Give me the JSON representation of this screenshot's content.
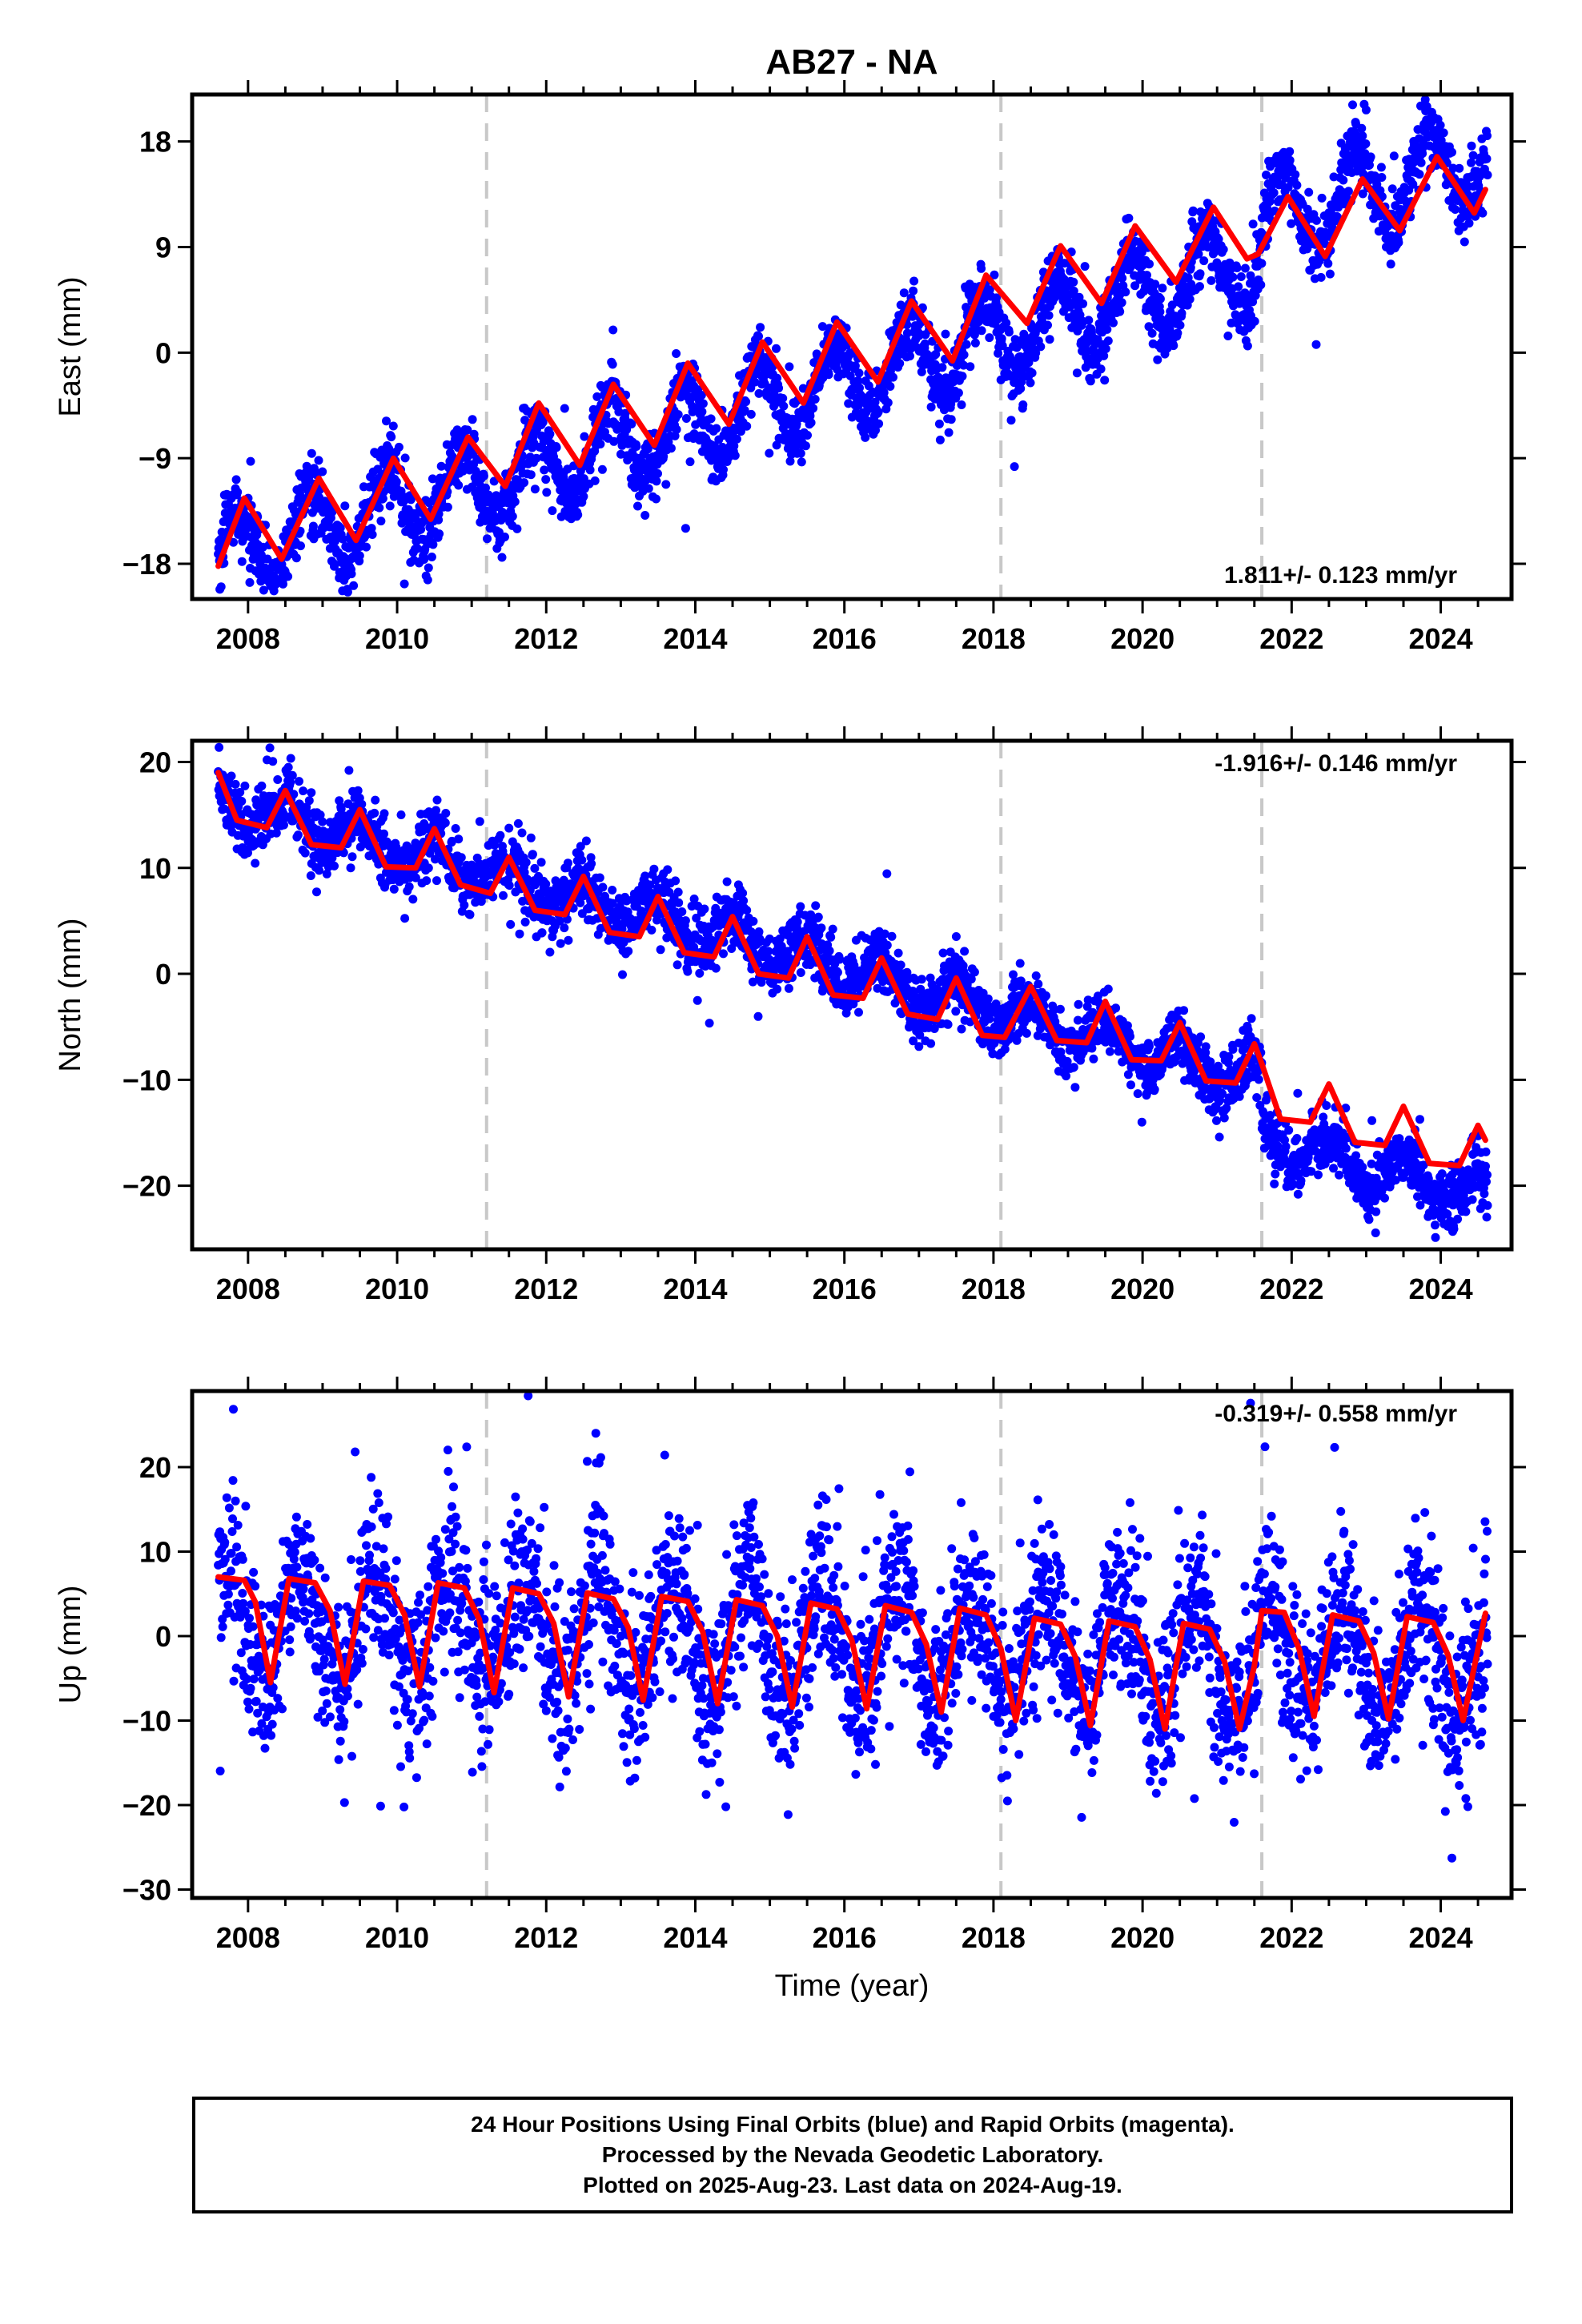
{
  "title": "AB27 - NA",
  "colors": {
    "data": "#0000ff",
    "model": "#ff0000",
    "offset_line": "#c8c8c8",
    "axis": "#000000"
  },
  "footer": {
    "line1": "24 Hour Positions Using Final Orbits (blue) and Rapid Orbits (magenta).",
    "line2": "Processed by the Nevada Geodetic Laboratory.",
    "line3": "Plotted on 2025-Aug-23. Last data on 2024-Aug-19."
  },
  "chart_data": [
    {
      "type": "scatter",
      "panel": "east",
      "ylabel": "East (mm)",
      "xlabel": "",
      "xlim": [
        2007.25,
        2024.95
      ],
      "ylim": [
        -21,
        22
      ],
      "yticks": [
        -18,
        -9,
        0,
        9,
        18
      ],
      "xticks": [
        2008,
        2010,
        2012,
        2014,
        2016,
        2018,
        2020,
        2022,
        2024
      ],
      "offsets": [
        2011.2,
        2018.1,
        2021.6
      ],
      "rate_label": "1.811+/- 0.123 mm/yr",
      "rate_position": "bottom-right",
      "series": [
        {
          "role": "observations",
          "trend": {
            "t0": 2007.6,
            "start": -17.5,
            "rate": 1.811
          },
          "steps": [
            {
              "t": 2021.6,
              "dy": 3.5
            }
          ],
          "seasonal_amplitude": 3.5,
          "seasonal_peak": 0.85,
          "noise_sd": 1.5
        },
        {
          "role": "model",
          "points": [
            [
              2007.6,
              -18.2
            ],
            [
              2007.95,
              -12.4
            ],
            [
              2008.45,
              -17.6
            ],
            [
              2008.95,
              -10.7
            ],
            [
              2009.45,
              -16.0
            ],
            [
              2009.95,
              -9.0
            ],
            [
              2010.45,
              -14.2
            ],
            [
              2010.95,
              -7.2
            ],
            [
              2011.45,
              -11.4
            ],
            [
              2011.9,
              -4.3
            ],
            [
              2012.45,
              -9.6
            ],
            [
              2012.9,
              -2.7
            ],
            [
              2013.45,
              -7.9
            ],
            [
              2013.9,
              -0.9
            ],
            [
              2014.45,
              -6.1
            ],
            [
              2014.9,
              0.9
            ],
            [
              2015.45,
              -4.3
            ],
            [
              2015.9,
              2.6
            ],
            [
              2016.45,
              -2.5
            ],
            [
              2016.9,
              4.4
            ],
            [
              2017.45,
              -0.7
            ],
            [
              2017.9,
              6.6
            ],
            [
              2018.45,
              2.5
            ],
            [
              2018.9,
              9.1
            ],
            [
              2019.45,
              4.2
            ],
            [
              2019.9,
              10.8
            ],
            [
              2020.45,
              6.0
            ],
            [
              2020.95,
              12.4
            ],
            [
              2021.4,
              8.0
            ],
            [
              2021.55,
              8.4
            ],
            [
              2021.95,
              13.3
            ],
            [
              2022.45,
              8.2
            ],
            [
              2022.95,
              14.8
            ],
            [
              2023.45,
              10.4
            ],
            [
              2023.95,
              16.7
            ],
            [
              2024.45,
              11.9
            ],
            [
              2024.6,
              13.9
            ]
          ]
        }
      ]
    },
    {
      "type": "scatter",
      "panel": "north",
      "ylabel": "North (mm)",
      "xlabel": "",
      "xlim": [
        2007.25,
        2024.95
      ],
      "ylim": [
        -26,
        22
      ],
      "yticks": [
        -20,
        -10,
        0,
        10,
        20
      ],
      "xticks": [
        2008,
        2010,
        2012,
        2014,
        2016,
        2018,
        2020,
        2022,
        2024
      ],
      "offsets": [
        2011.2,
        2018.1,
        2021.6
      ],
      "rate_label": "-1.916+/- 0.146 mm/yr",
      "rate_position": "top-right",
      "series": [
        {
          "role": "observations",
          "trend": {
            "t0": 2007.6,
            "start": 16.5,
            "rate": -1.916
          },
          "steps": [
            {
              "t": 2021.6,
              "dy": -5.0
            }
          ],
          "seasonal_amplitude": 1.8,
          "seasonal_peak": 0.5,
          "noise_sd": 1.5
        },
        {
          "role": "model",
          "points": [
            [
              2007.6,
              19.0
            ],
            [
              2007.85,
              14.5
            ],
            [
              2008.25,
              13.8
            ],
            [
              2008.5,
              17.3
            ],
            [
              2008.85,
              12.2
            ],
            [
              2009.25,
              11.9
            ],
            [
              2009.5,
              15.5
            ],
            [
              2009.85,
              10.1
            ],
            [
              2010.25,
              10.0
            ],
            [
              2010.5,
              13.7
            ],
            [
              2010.85,
              8.4
            ],
            [
              2011.25,
              7.6
            ],
            [
              2011.5,
              11.0
            ],
            [
              2011.85,
              6.0
            ],
            [
              2012.25,
              5.6
            ],
            [
              2012.5,
              9.2
            ],
            [
              2012.85,
              3.9
            ],
            [
              2013.25,
              3.5
            ],
            [
              2013.5,
              7.3
            ],
            [
              2013.85,
              2.0
            ],
            [
              2014.25,
              1.6
            ],
            [
              2014.5,
              5.4
            ],
            [
              2014.85,
              0.0
            ],
            [
              2015.25,
              -0.4
            ],
            [
              2015.5,
              3.5
            ],
            [
              2015.85,
              -2.0
            ],
            [
              2016.25,
              -2.3
            ],
            [
              2016.5,
              1.5
            ],
            [
              2016.85,
              -3.8
            ],
            [
              2017.25,
              -4.3
            ],
            [
              2017.5,
              -0.4
            ],
            [
              2017.85,
              -5.8
            ],
            [
              2018.15,
              -6.0
            ],
            [
              2018.5,
              -1.2
            ],
            [
              2018.85,
              -6.3
            ],
            [
              2019.25,
              -6.5
            ],
            [
              2019.5,
              -2.6
            ],
            [
              2019.85,
              -8.1
            ],
            [
              2020.25,
              -8.2
            ],
            [
              2020.5,
              -4.6
            ],
            [
              2020.85,
              -10.1
            ],
            [
              2021.25,
              -10.3
            ],
            [
              2021.5,
              -6.6
            ],
            [
              2021.6,
              -8.5
            ],
            [
              2021.85,
              -13.7
            ],
            [
              2022.25,
              -14.0
            ],
            [
              2022.5,
              -10.4
            ],
            [
              2022.85,
              -15.9
            ],
            [
              2023.25,
              -16.2
            ],
            [
              2023.5,
              -12.5
            ],
            [
              2023.85,
              -17.9
            ],
            [
              2024.25,
              -18.1
            ],
            [
              2024.5,
              -14.3
            ],
            [
              2024.6,
              -15.7
            ]
          ]
        }
      ]
    },
    {
      "type": "scatter",
      "panel": "up",
      "ylabel": "Up (mm)",
      "xlabel": "Time (year)",
      "xlim": [
        2007.25,
        2024.95
      ],
      "ylim": [
        -31,
        29
      ],
      "yticks": [
        -30,
        -20,
        -10,
        0,
        10,
        20
      ],
      "xticks": [
        2008,
        2010,
        2012,
        2014,
        2016,
        2018,
        2020,
        2022,
        2024
      ],
      "offsets": [
        2011.2,
        2018.1,
        2021.6
      ],
      "rate_label": "-0.319+/- 0.558 mm/yr",
      "rate_position": "top-right",
      "series": [
        {
          "role": "observations",
          "trend": {
            "t0": 2007.6,
            "start": 2.0,
            "rate": -0.319
          },
          "steps": [],
          "seasonal_amplitude": 6.5,
          "seasonal_peak": 0.7,
          "noise_sd": 5.0
        },
        {
          "role": "model",
          "points": [
            [
              2007.6,
              7.0
            ],
            [
              2007.95,
              6.6
            ],
            [
              2008.1,
              4.0
            ],
            [
              2008.3,
              -5.5
            ],
            [
              2008.55,
              6.8
            ],
            [
              2008.9,
              6.3
            ],
            [
              2009.1,
              3.0
            ],
            [
              2009.3,
              -5.7
            ],
            [
              2009.55,
              6.5
            ],
            [
              2009.9,
              6.0
            ],
            [
              2010.1,
              2.5
            ],
            [
              2010.3,
              -6.0
            ],
            [
              2010.55,
              6.3
            ],
            [
              2010.9,
              5.7
            ],
            [
              2011.1,
              2.0
            ],
            [
              2011.3,
              -6.7
            ],
            [
              2011.55,
              5.7
            ],
            [
              2011.9,
              5.0
            ],
            [
              2012.1,
              1.5
            ],
            [
              2012.3,
              -7.2
            ],
            [
              2012.55,
              5.1
            ],
            [
              2012.9,
              4.4
            ],
            [
              2013.1,
              1.0
            ],
            [
              2013.3,
              -7.6
            ],
            [
              2013.55,
              4.7
            ],
            [
              2013.9,
              4.1
            ],
            [
              2014.1,
              0.5
            ],
            [
              2014.3,
              -8.0
            ],
            [
              2014.55,
              4.3
            ],
            [
              2014.9,
              3.6
            ],
            [
              2015.1,
              0.0
            ],
            [
              2015.3,
              -8.4
            ],
            [
              2015.55,
              3.9
            ],
            [
              2015.9,
              3.2
            ],
            [
              2016.1,
              -0.5
            ],
            [
              2016.3,
              -8.6
            ],
            [
              2016.55,
              3.6
            ],
            [
              2016.9,
              2.8
            ],
            [
              2017.1,
              -1.0
            ],
            [
              2017.3,
              -9.0
            ],
            [
              2017.55,
              3.3
            ],
            [
              2017.9,
              2.5
            ],
            [
              2018.1,
              -1.5
            ],
            [
              2018.3,
              -10.0
            ],
            [
              2018.55,
              2.1
            ],
            [
              2018.9,
              1.4
            ],
            [
              2019.1,
              -2.5
            ],
            [
              2019.3,
              -10.6
            ],
            [
              2019.55,
              1.8
            ],
            [
              2019.9,
              1.1
            ],
            [
              2020.1,
              -2.8
            ],
            [
              2020.3,
              -11.0
            ],
            [
              2020.55,
              1.5
            ],
            [
              2020.9,
              0.8
            ],
            [
              2021.1,
              -3.0
            ],
            [
              2021.3,
              -11.0
            ],
            [
              2021.5,
              -3.5
            ],
            [
              2021.6,
              3.0
            ],
            [
              2021.9,
              2.8
            ],
            [
              2022.1,
              -1.5
            ],
            [
              2022.3,
              -9.5
            ],
            [
              2022.55,
              2.5
            ],
            [
              2022.9,
              1.8
            ],
            [
              2023.1,
              -2.0
            ],
            [
              2023.3,
              -9.8
            ],
            [
              2023.55,
              2.3
            ],
            [
              2023.9,
              1.6
            ],
            [
              2024.1,
              -2.3
            ],
            [
              2024.3,
              -10.0
            ],
            [
              2024.6,
              2.7
            ]
          ]
        }
      ]
    }
  ]
}
